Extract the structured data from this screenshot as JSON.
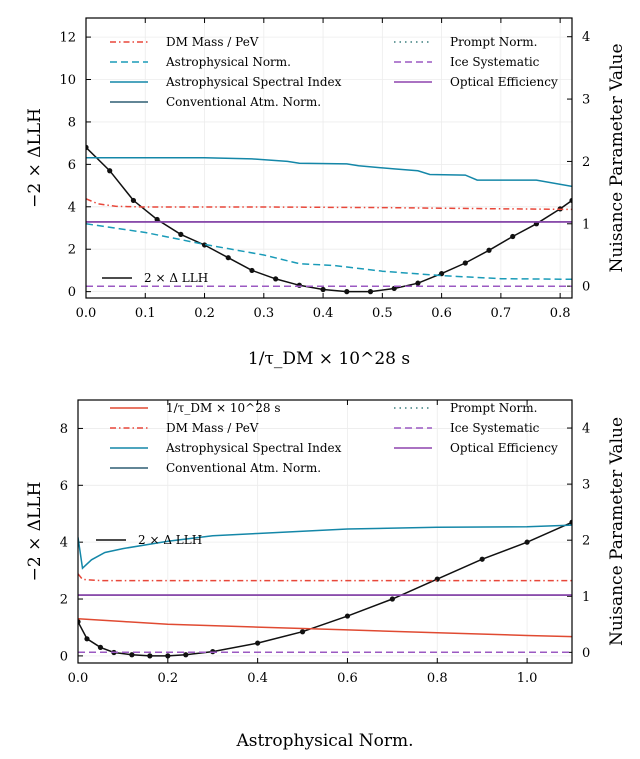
{
  "colors": {
    "llh": "#111111",
    "dm_mass": "#e8473a",
    "astro_norm": "#1a9bb8",
    "astro_index": "#1487a8",
    "conv_norm": "#2f5f73",
    "prompt_norm": "#3c7f7f",
    "ice": "#9b59c2",
    "optical": "#8e44ad",
    "lifetime": "#e04a32"
  },
  "chart_data": [
    {
      "type": "line",
      "xlabel": "1/τ_DM × 10^28 s",
      "ylabel": "−2 × ΔLLH",
      "y2label": "Nuisance Parameter Value",
      "xlim": [
        0,
        0.82
      ],
      "ylim": [
        -0.3,
        12.9
      ],
      "y2lim": [
        -0.19,
        4.3
      ],
      "xticks": [
        "0.0",
        "0.1",
        "0.2",
        "0.3",
        "0.4",
        "0.5",
        "0.6",
        "0.7",
        "0.8"
      ],
      "yticks": [
        "0",
        "2",
        "4",
        "6",
        "8",
        "10",
        "12"
      ],
      "y2ticks": [
        "0",
        "1",
        "2",
        "3",
        "4"
      ],
      "grid": true,
      "legend": [
        {
          "key": "dm_mass",
          "label": "DM Mass / PeV"
        },
        {
          "key": "astro_norm",
          "label": "Astrophysical Norm."
        },
        {
          "key": "astro_index",
          "label": "Astrophysical Spectral Index"
        },
        {
          "key": "conv_norm",
          "label": "Conventional Atm. Norm."
        },
        {
          "key": "prompt_norm",
          "label": "Prompt Norm."
        },
        {
          "key": "ice",
          "label": "Ice Systematic"
        },
        {
          "key": "optical",
          "label": "Optical Efficiency"
        }
      ],
      "llh_label": "2 × Δ LLH",
      "series": [
        {
          "key": "llh",
          "name": "2 × Δ LLH",
          "axis": "left",
          "style": "solid",
          "markers": true,
          "x": [
            0.0,
            0.04,
            0.08,
            0.12,
            0.16,
            0.2,
            0.24,
            0.28,
            0.32,
            0.36,
            0.4,
            0.44,
            0.48,
            0.52,
            0.56,
            0.6,
            0.64,
            0.68,
            0.72,
            0.76,
            0.8,
            0.82
          ],
          "y": [
            6.8,
            5.7,
            4.3,
            3.4,
            2.7,
            2.2,
            1.6,
            1.0,
            0.6,
            0.3,
            0.1,
            0.0,
            0.0,
            0.15,
            0.4,
            0.85,
            1.35,
            1.95,
            2.6,
            3.2,
            3.9,
            4.3
          ]
        },
        {
          "key": "dm_mass",
          "name": "DM Mass / PeV",
          "axis": "right",
          "style": "dashdot",
          "x": [
            0.0,
            0.02,
            0.05,
            0.1,
            0.3,
            0.5,
            0.7,
            0.82
          ],
          "y": [
            1.4,
            1.32,
            1.28,
            1.27,
            1.27,
            1.26,
            1.24,
            1.23
          ]
        },
        {
          "key": "astro_norm",
          "name": "Astrophysical Norm.",
          "axis": "right",
          "style": "dashed",
          "x": [
            0.0,
            0.1,
            0.2,
            0.3,
            0.36,
            0.42,
            0.5,
            0.6,
            0.7,
            0.82
          ],
          "y": [
            1.0,
            0.86,
            0.67,
            0.5,
            0.36,
            0.33,
            0.24,
            0.17,
            0.12,
            0.11
          ]
        },
        {
          "key": "astro_index",
          "name": "Astrophysical Spectral Index",
          "axis": "right",
          "style": "solid",
          "x": [
            0.0,
            0.1,
            0.2,
            0.28,
            0.34,
            0.36,
            0.44,
            0.46,
            0.52,
            0.56,
            0.58,
            0.64,
            0.66,
            0.76,
            0.82
          ],
          "y": [
            2.06,
            2.06,
            2.06,
            2.04,
            2.0,
            1.97,
            1.96,
            1.93,
            1.88,
            1.85,
            1.79,
            1.78,
            1.7,
            1.7,
            1.6
          ]
        },
        {
          "key": "conv_norm",
          "name": "Conventional Atm. Norm.",
          "axis": "right",
          "style": "solid",
          "x": [
            0.0,
            0.82
          ],
          "y": [
            1.03,
            1.03
          ]
        },
        {
          "key": "prompt_norm",
          "name": "Prompt Norm.",
          "axis": "right",
          "style": "dotted",
          "x": [
            0.0,
            0.82
          ],
          "y": [
            0.0,
            0.0
          ]
        },
        {
          "key": "ice",
          "name": "Ice Systematic",
          "axis": "right",
          "style": "dashed",
          "x": [
            0.0,
            0.82
          ],
          "y": [
            0.0,
            0.0
          ]
        },
        {
          "key": "optical",
          "name": "Optical Efficiency",
          "axis": "right",
          "style": "solid",
          "x": [
            0.0,
            0.82
          ],
          "y": [
            1.03,
            1.03
          ]
        }
      ]
    },
    {
      "type": "line",
      "xlabel": "Astrophysical Norm.",
      "ylabel": "−2 × ΔLLH",
      "y2label": "Nuisance Parameter Value",
      "xlim": [
        0,
        1.1
      ],
      "ylim": [
        -0.25,
        9.0
      ],
      "y2lim": [
        -0.19,
        4.5
      ],
      "xticks": [
        "0.0",
        "0.2",
        "0.4",
        "0.6",
        "0.8",
        "1.0"
      ],
      "yticks": [
        "0",
        "2",
        "4",
        "6",
        "8"
      ],
      "y2ticks": [
        "0",
        "1",
        "2",
        "3",
        "4"
      ],
      "grid": true,
      "legend": [
        {
          "key": "lifetime",
          "label": "1/τ_DM × 10^28 s"
        },
        {
          "key": "dm_mass",
          "label": "DM Mass / PeV"
        },
        {
          "key": "astro_index",
          "label": "Astrophysical Spectral Index"
        },
        {
          "key": "conv_norm",
          "label": "Conventional Atm. Norm."
        },
        {
          "key": "prompt_norm",
          "label": "Prompt Norm."
        },
        {
          "key": "ice",
          "label": "Ice Systematic"
        },
        {
          "key": "optical",
          "label": "Optical Efficiency"
        }
      ],
      "llh_label": "2 × Δ LLH",
      "series": [
        {
          "key": "llh",
          "name": "2 × Δ LLH",
          "axis": "left",
          "style": "solid",
          "markers": true,
          "x": [
            0.0,
            0.02,
            0.05,
            0.08,
            0.12,
            0.16,
            0.2,
            0.24,
            0.3,
            0.4,
            0.5,
            0.6,
            0.7,
            0.8,
            0.9,
            1.0,
            1.1
          ],
          "y": [
            1.2,
            0.6,
            0.3,
            0.12,
            0.04,
            0.0,
            0.0,
            0.04,
            0.15,
            0.45,
            0.85,
            1.4,
            2.0,
            2.7,
            3.4,
            4.0,
            4.7
          ]
        },
        {
          "key": "lifetime",
          "name": "1/τ_DM × 10^28 s",
          "axis": "right",
          "style": "solid",
          "x": [
            0.0,
            0.1,
            0.2,
            0.4,
            0.6,
            0.8,
            1.0,
            1.1
          ],
          "y": [
            0.6,
            0.55,
            0.5,
            0.45,
            0.4,
            0.35,
            0.3,
            0.28
          ]
        },
        {
          "key": "dm_mass",
          "name": "DM Mass / PeV",
          "axis": "right",
          "style": "dashdot",
          "x": [
            0.0,
            0.01,
            0.05,
            0.3,
            0.6,
            0.9,
            1.1
          ],
          "y": [
            1.4,
            1.3,
            1.28,
            1.28,
            1.28,
            1.28,
            1.28
          ]
        },
        {
          "key": "astro_index",
          "name": "Astrophysical Spectral Index",
          "axis": "right",
          "style": "solid",
          "x": [
            0.0,
            0.01,
            0.03,
            0.06,
            0.1,
            0.2,
            0.3,
            0.4,
            0.6,
            0.8,
            1.0,
            1.1
          ],
          "y": [
            2.05,
            1.5,
            1.65,
            1.78,
            1.85,
            1.98,
            2.08,
            2.12,
            2.2,
            2.23,
            2.24,
            2.27
          ]
        },
        {
          "key": "conv_norm",
          "name": "Conventional Atm. Norm.",
          "axis": "right",
          "style": "solid",
          "x": [
            0.0,
            1.1
          ],
          "y": [
            1.02,
            1.02
          ]
        },
        {
          "key": "prompt_norm",
          "name": "Prompt Norm.",
          "axis": "right",
          "style": "dotted",
          "x": [
            0.0,
            1.1
          ],
          "y": [
            0.0,
            0.0
          ]
        },
        {
          "key": "ice",
          "name": "Ice Systematic",
          "axis": "right",
          "style": "dashed",
          "x": [
            0.0,
            1.1
          ],
          "y": [
            0.0,
            0.0
          ]
        },
        {
          "key": "optical",
          "name": "Optical Efficiency",
          "axis": "right",
          "style": "solid",
          "x": [
            0.0,
            1.1
          ],
          "y": [
            1.02,
            1.02
          ]
        }
      ]
    }
  ]
}
